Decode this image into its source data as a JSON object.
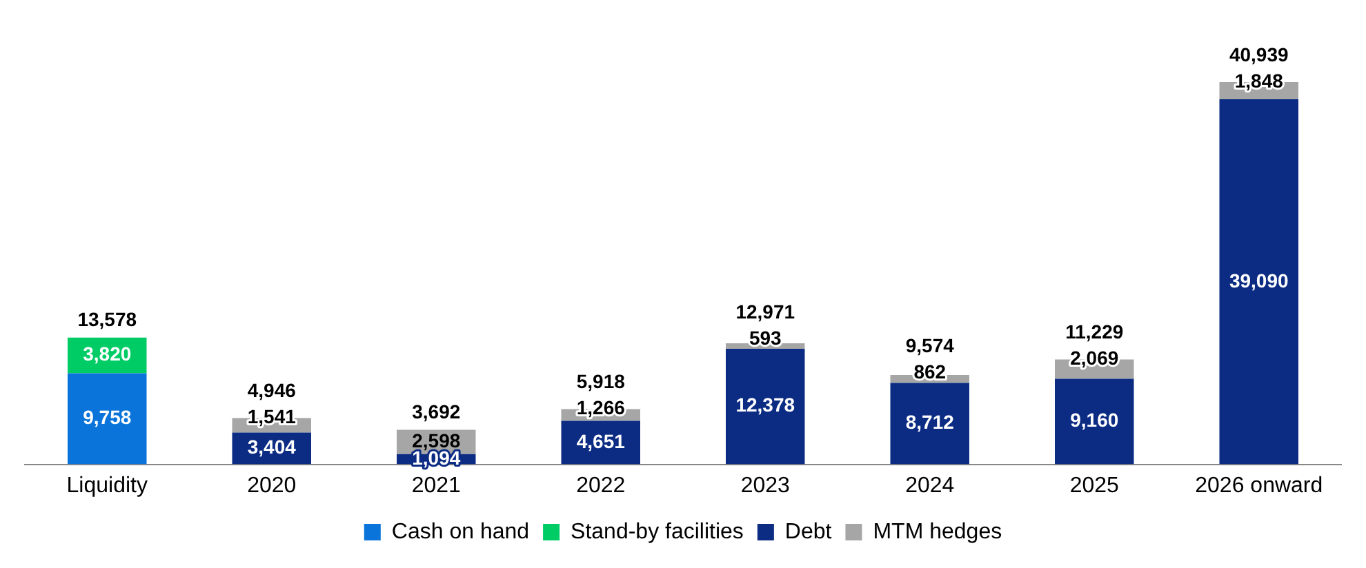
{
  "chart_data": {
    "type": "bar",
    "stacked": true,
    "categories": [
      "Liquidity",
      "2020",
      "2021",
      "2022",
      "2023",
      "2024",
      "2025",
      "2026 onward"
    ],
    "series": [
      {
        "name": "Cash on hand",
        "color": "#0a74da",
        "values": [
          9758,
          null,
          null,
          null,
          null,
          null,
          null,
          null
        ],
        "value_labels": [
          "9,758",
          null,
          null,
          null,
          null,
          null,
          null,
          null
        ]
      },
      {
        "name": "Stand-by facilities",
        "color": "#00cc66",
        "values": [
          3820,
          null,
          null,
          null,
          null,
          null,
          null,
          null
        ],
        "value_labels": [
          "3,820",
          null,
          null,
          null,
          null,
          null,
          null,
          null
        ]
      },
      {
        "name": "Debt",
        "color": "#0c2c84",
        "values": [
          null,
          3404,
          1094,
          4651,
          12378,
          8712,
          9160,
          39090
        ],
        "value_labels": [
          null,
          "3,404",
          "1,094",
          "4,651",
          "12,378",
          "8,712",
          "9,160",
          "39,090"
        ]
      },
      {
        "name": "MTM hedges",
        "color": "#a6a6a6",
        "values": [
          null,
          1541,
          2598,
          1266,
          593,
          862,
          2069,
          1848
        ],
        "value_labels": [
          null,
          "1,541",
          "2,598",
          "1,266",
          "593",
          "862",
          "2,069",
          "1,848"
        ]
      }
    ],
    "totals": [
      "13,578",
      "4,946",
      "3,692",
      "5,918",
      "12,971",
      "9,574",
      "11,229",
      "40,939"
    ],
    "tick_labels": "x",
    "grid": false,
    "legend": "bottom"
  }
}
